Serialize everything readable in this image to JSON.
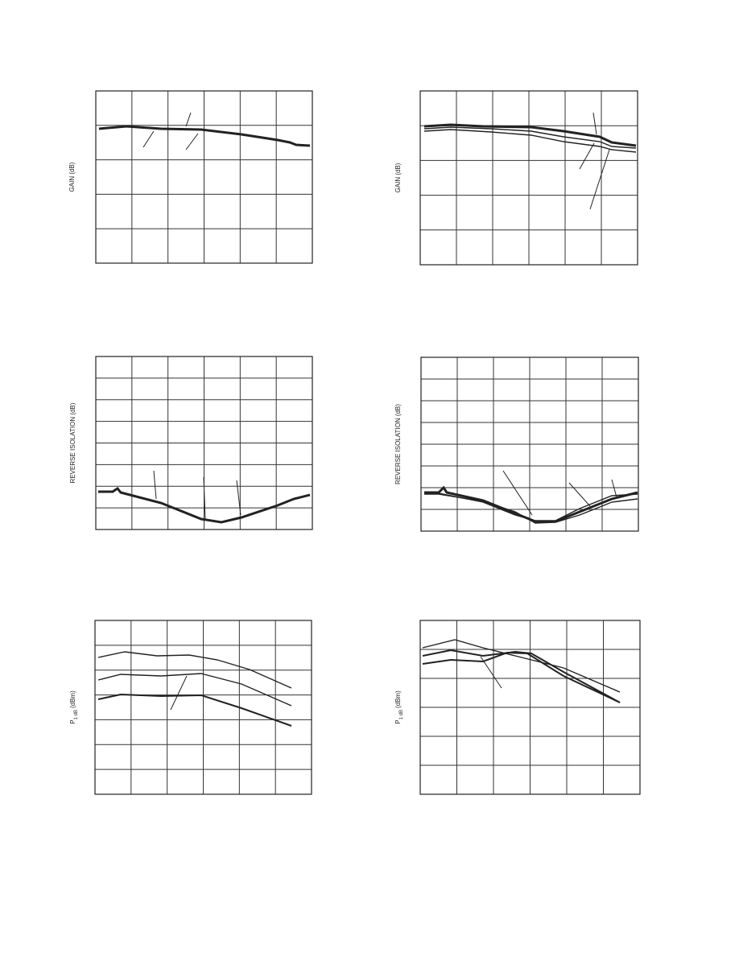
{
  "charts": [
    {
      "y_axis_label": "GAIN (dB)"
    },
    {
      "y_axis_label": "GAIN (dB)"
    },
    {
      "y_axis_label": "REVERSE ISOLATION (dB)"
    },
    {
      "y_axis_label": "REVERSE ISOLATION (dB)"
    },
    {
      "y_axis_label": {
        "main": "P",
        "subscript": "1 dB",
        "unit": "(dBm)"
      }
    },
    {
      "y_axis_label": {
        "main": "P",
        "subscript": "1 dB",
        "unit": "(dBm)"
      }
    }
  ]
}
